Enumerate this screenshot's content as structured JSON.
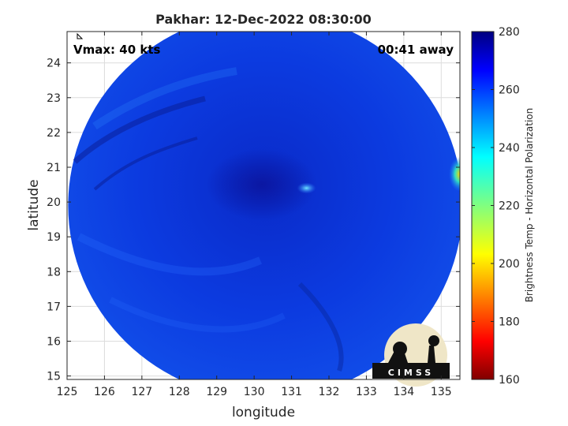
{
  "chart_data": {
    "type": "heatmap",
    "title": "Pakhar: 12-Dec-2022 08:30:00",
    "xlabel": "longitude",
    "ylabel": "latitude",
    "xlim": [
      125,
      135.5
    ],
    "ylim": [
      14.9,
      24.9
    ],
    "xticks": [
      125,
      126,
      127,
      128,
      129,
      130,
      131,
      132,
      133,
      134,
      135
    ],
    "yticks": [
      15,
      16,
      17,
      18,
      19,
      20,
      21,
      22,
      23,
      24
    ],
    "grid": true,
    "annotations": [
      {
        "text": "Vmax: 40 kts",
        "position": "top-left"
      },
      {
        "text": "00:41 away",
        "position": "top-right"
      }
    ],
    "swath": {
      "shape": "circle",
      "center": [
        130.3,
        19.9
      ]
    },
    "features": [
      {
        "kind": "cold-core",
        "center": [
          130.2,
          20.5
        ],
        "value": 270
      },
      {
        "kind": "warm-spot",
        "center": [
          135.5,
          20.8
        ],
        "value": 235
      },
      {
        "kind": "bright-spot",
        "center": [
          131.4,
          20.4
        ],
        "value": 250
      }
    ],
    "colorbar": {
      "label": "Brightness Temp - Horizontal Polarization",
      "min": 160,
      "max": 280,
      "ticks": [
        160,
        180,
        200,
        220,
        240,
        260,
        280
      ],
      "colormap": "jet"
    }
  },
  "logo": {
    "text": "CIMSS"
  }
}
